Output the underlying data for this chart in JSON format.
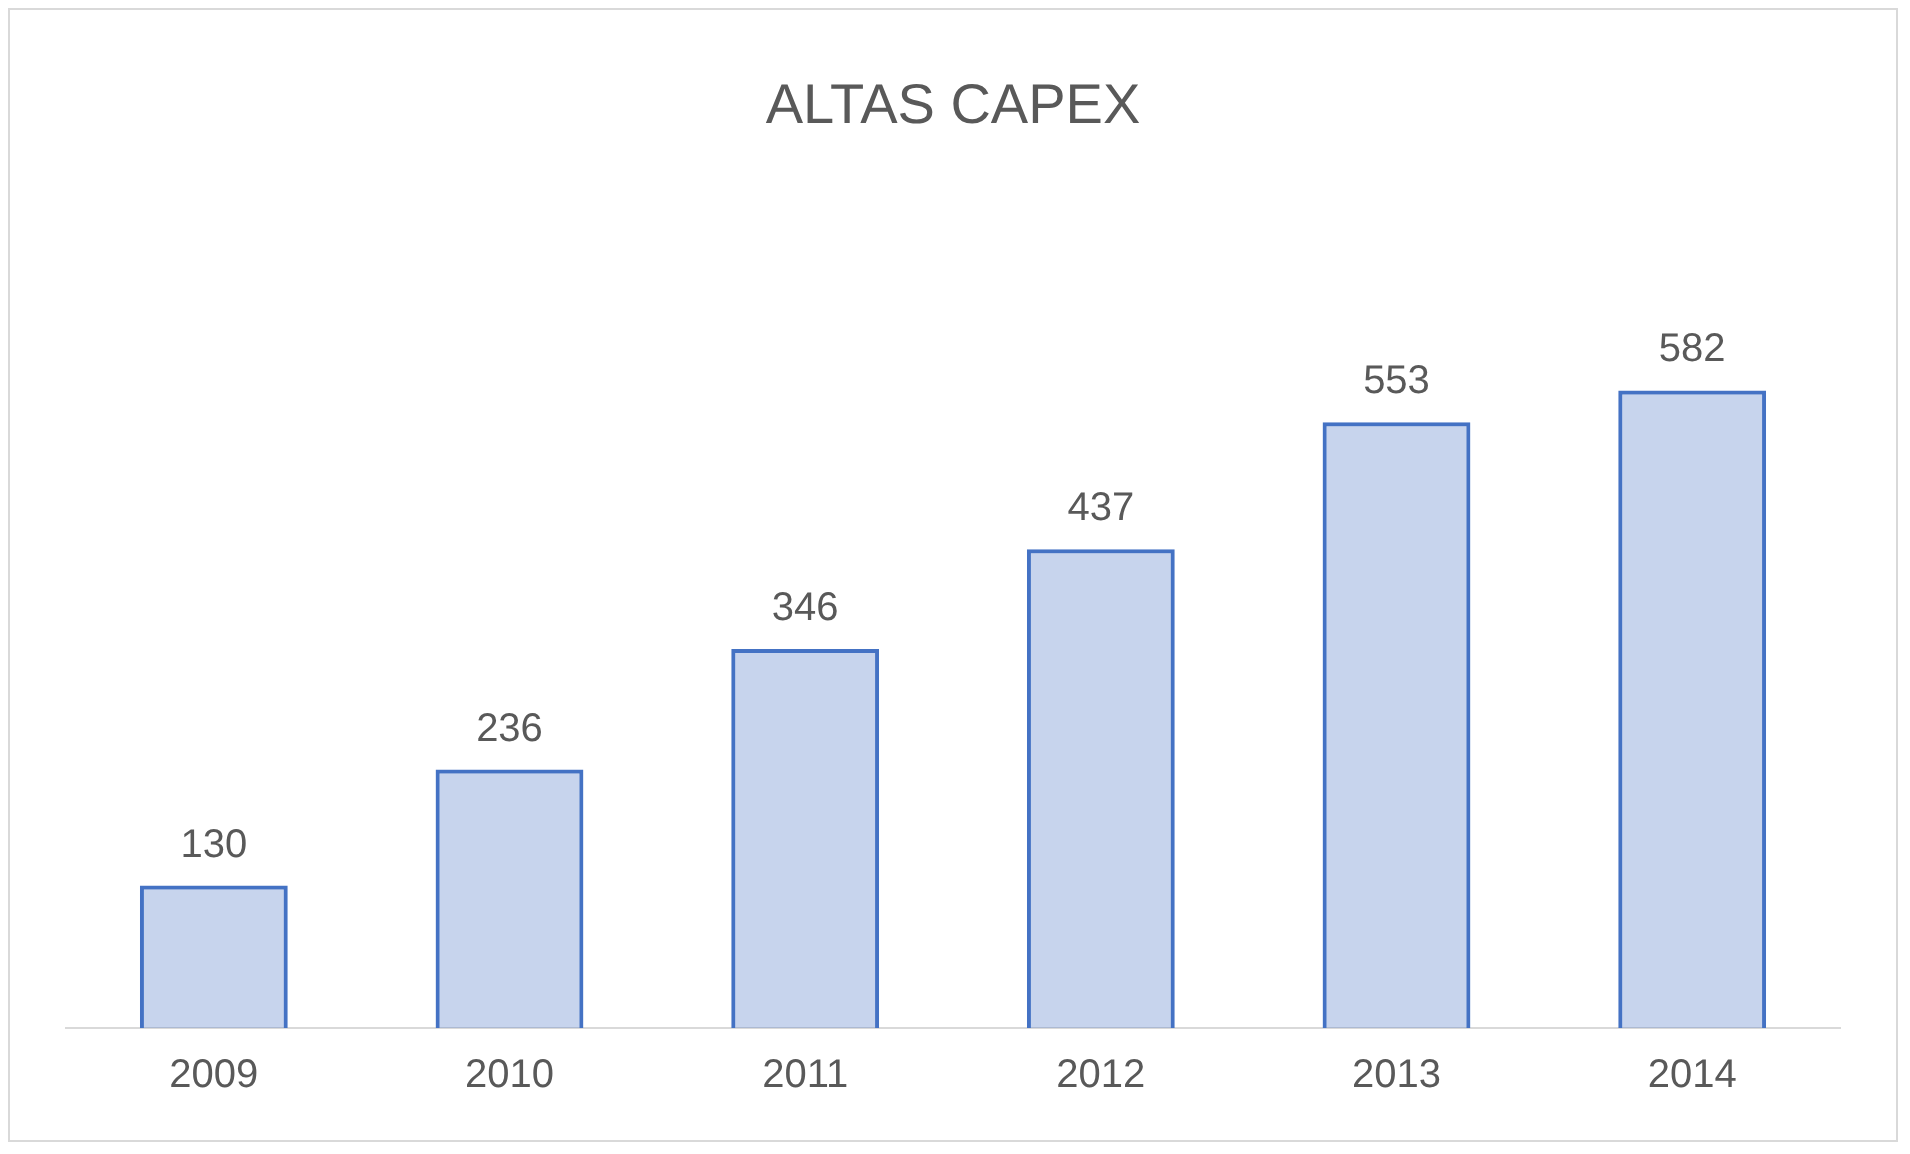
{
  "chart_data": {
    "type": "bar",
    "title": "ALTAS CAPEX",
    "categories": [
      "2009",
      "2010",
      "2011",
      "2012",
      "2013",
      "2014"
    ],
    "values": [
      130,
      236,
      346,
      437,
      553,
      582
    ],
    "color": "#4472c4",
    "data_labels": true,
    "grid": false,
    "legend": false
  }
}
